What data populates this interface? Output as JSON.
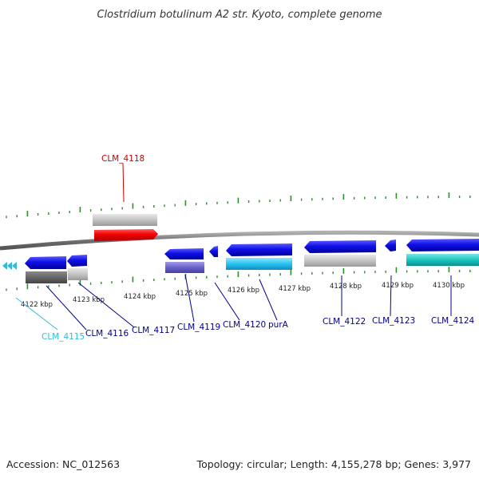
{
  "title": "Clostridium botulinum A2 str. Kyoto, complete genome",
  "accession": "Accession: NC_012563",
  "summary": "Topology: circular; Length: 4,155,278 bp; Genes: 3,977",
  "colors": {
    "backbone": "#808080",
    "tick": "#2e8b2e",
    "label_blue": "#00008b",
    "label_red": "#cc0000",
    "label_cyan": "#33bbdd"
  },
  "kbp_labels": [
    "4122 kbp",
    "4123 kbp",
    "4124 kbp",
    "4125 kbp",
    "4126 kbp",
    "4127 kbp",
    "4128 kbp",
    "4129 kbp",
    "4130 kbp"
  ],
  "gene_labels": [
    {
      "id": "label-clm-4118",
      "text": "CLM_4118",
      "color": "#cc0000"
    },
    {
      "id": "label-clm-4115",
      "text": "CLM_4115",
      "color": "#33bbdd"
    },
    {
      "id": "label-clm-4116",
      "text": "CLM_4116",
      "color": "#00008b"
    },
    {
      "id": "label-clm-4117",
      "text": "CLM_4117",
      "color": "#00008b"
    },
    {
      "id": "label-clm-4119",
      "text": "CLM_4119",
      "color": "#00008b"
    },
    {
      "id": "label-clm-4120",
      "text": "CLM_4120",
      "color": "#00008b"
    },
    {
      "id": "label-pura",
      "text": "purA",
      "color": "#00008b"
    },
    {
      "id": "label-clm-4122",
      "text": "CLM_4122",
      "color": "#00008b"
    },
    {
      "id": "label-clm-4123",
      "text": "CLM_4123",
      "color": "#00008b"
    },
    {
      "id": "label-clm-4124",
      "text": "CLM_4124",
      "color": "#00008b"
    }
  ]
}
